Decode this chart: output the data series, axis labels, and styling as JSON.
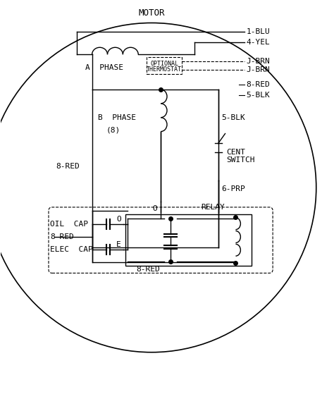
{
  "bg_color": "#ffffff",
  "line_color": "#000000",
  "title": "MOTOR",
  "font_size": 8,
  "labels": {
    "1_BLU": "1-BLU",
    "4_YEL": "4-YEL",
    "J_BRN1": "J-BRN",
    "J_BRN2": "J-BRN",
    "8_RED": "8-RED",
    "5_BLK_top": "5-BLK",
    "A_PHASE": "A  PHASE",
    "B_PHASE": "B  PHASE",
    "opt_therm_line1": "OPTIONAL",
    "opt_therm_line2": "THERMOSTAT",
    "eight_paren": "(8)",
    "O_label": "O",
    "5BLK_mid": "5-BLK",
    "CENT_SWITCH": "CENT\nSWITCH",
    "6_PRP": "6-PRP",
    "8RED_left": "8-RED",
    "RELAY": "RELAY",
    "OIL_CAP": "OIL  CAP",
    "8RED_cap": "8-RED",
    "ELEC_CAP": "ELEC  CAP",
    "O_cap": "O",
    "E_cap": "E",
    "8RED_bot": "8-RED"
  }
}
